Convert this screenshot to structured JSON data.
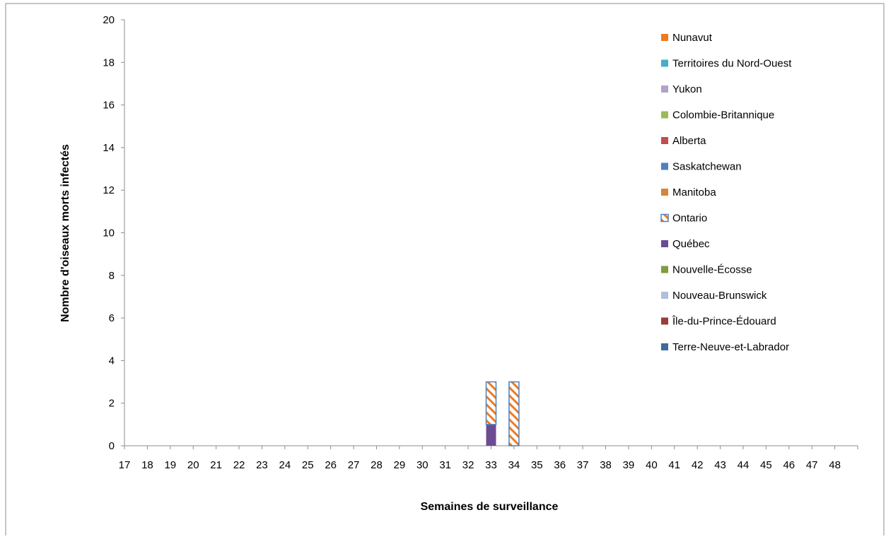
{
  "chart_data": {
    "type": "bar",
    "stacked": true,
    "xlabel": "Semaines de surveillance",
    "ylabel": "Nombre d'oiseaux morts infectés",
    "ylim": [
      0,
      20
    ],
    "yticks": [
      0,
      2,
      4,
      6,
      8,
      10,
      12,
      14,
      16,
      18,
      20
    ],
    "grid": false,
    "legend_position": "top-right",
    "categories": [
      "17",
      "18",
      "19",
      "20",
      "21",
      "22",
      "23",
      "24",
      "25",
      "26",
      "27",
      "28",
      "29",
      "30",
      "31",
      "32",
      "33",
      "34",
      "35",
      "36",
      "37",
      "38",
      "39",
      "40",
      "41",
      "42",
      "43",
      "44",
      "45",
      "46",
      "47",
      "48"
    ],
    "series": [
      {
        "name": "Terre-Neuve-et-Labrador",
        "color": "#3E6A9C",
        "values": [
          0,
          0,
          0,
          0,
          0,
          0,
          0,
          0,
          0,
          0,
          0,
          0,
          0,
          0,
          0,
          0,
          0,
          0,
          0,
          0,
          0,
          0,
          0,
          0,
          0,
          0,
          0,
          0,
          0,
          0,
          0,
          0
        ]
      },
      {
        "name": "Île-du-Prince-Édouard",
        "color": "#9E3B3B",
        "values": [
          0,
          0,
          0,
          0,
          0,
          0,
          0,
          0,
          0,
          0,
          0,
          0,
          0,
          0,
          0,
          0,
          0,
          0,
          0,
          0,
          0,
          0,
          0,
          0,
          0,
          0,
          0,
          0,
          0,
          0,
          0,
          0
        ]
      },
      {
        "name": "Nouveau-Brunswick",
        "color": "#AFC0DA",
        "values": [
          0,
          0,
          0,
          0,
          0,
          0,
          0,
          0,
          0,
          0,
          0,
          0,
          0,
          0,
          0,
          0,
          0,
          0,
          0,
          0,
          0,
          0,
          0,
          0,
          0,
          0,
          0,
          0,
          0,
          0,
          0,
          0
        ]
      },
      {
        "name": "Nouvelle-Écosse",
        "color": "#7F9E3E",
        "values": [
          0,
          0,
          0,
          0,
          0,
          0,
          0,
          0,
          0,
          0,
          0,
          0,
          0,
          0,
          0,
          0,
          0,
          0,
          0,
          0,
          0,
          0,
          0,
          0,
          0,
          0,
          0,
          0,
          0,
          0,
          0,
          0
        ]
      },
      {
        "name": "Québec",
        "color": "#6A4C93",
        "values": [
          0,
          0,
          0,
          0,
          0,
          0,
          0,
          0,
          0,
          0,
          0,
          0,
          0,
          0,
          0,
          0,
          1,
          0,
          0,
          0,
          0,
          0,
          0,
          0,
          0,
          0,
          0,
          0,
          0,
          0,
          0,
          0
        ]
      },
      {
        "name": "Ontario",
        "color": "#4F81BD",
        "pattern": "hatched-orange",
        "values": [
          0,
          0,
          0,
          0,
          0,
          0,
          0,
          0,
          0,
          0,
          0,
          0,
          0,
          0,
          0,
          0,
          2,
          3,
          0,
          0,
          0,
          0,
          0,
          0,
          0,
          0,
          0,
          0,
          0,
          0,
          0,
          0
        ]
      },
      {
        "name": "Manitoba",
        "color": "#D9843C",
        "values": [
          0,
          0,
          0,
          0,
          0,
          0,
          0,
          0,
          0,
          0,
          0,
          0,
          0,
          0,
          0,
          0,
          0,
          0,
          0,
          0,
          0,
          0,
          0,
          0,
          0,
          0,
          0,
          0,
          0,
          0,
          0,
          0
        ]
      },
      {
        "name": "Saskatchewan",
        "color": "#4F81BD",
        "values": [
          0,
          0,
          0,
          0,
          0,
          0,
          0,
          0,
          0,
          0,
          0,
          0,
          0,
          0,
          0,
          0,
          0,
          0,
          0,
          0,
          0,
          0,
          0,
          0,
          0,
          0,
          0,
          0,
          0,
          0,
          0,
          0
        ]
      },
      {
        "name": "Alberta",
        "color": "#C0504D",
        "values": [
          0,
          0,
          0,
          0,
          0,
          0,
          0,
          0,
          0,
          0,
          0,
          0,
          0,
          0,
          0,
          0,
          0,
          0,
          0,
          0,
          0,
          0,
          0,
          0,
          0,
          0,
          0,
          0,
          0,
          0,
          0,
          0
        ]
      },
      {
        "name": "Colombie-Britannique",
        "color": "#9BBB59",
        "values": [
          0,
          0,
          0,
          0,
          0,
          0,
          0,
          0,
          0,
          0,
          0,
          0,
          0,
          0,
          0,
          0,
          0,
          0,
          0,
          0,
          0,
          0,
          0,
          0,
          0,
          0,
          0,
          0,
          0,
          0,
          0,
          0
        ]
      },
      {
        "name": "Yukon",
        "color": "#B3A2C7",
        "values": [
          0,
          0,
          0,
          0,
          0,
          0,
          0,
          0,
          0,
          0,
          0,
          0,
          0,
          0,
          0,
          0,
          0,
          0,
          0,
          0,
          0,
          0,
          0,
          0,
          0,
          0,
          0,
          0,
          0,
          0,
          0,
          0
        ]
      },
      {
        "name": "Territoires du Nord-Ouest",
        "color": "#4BACC6",
        "values": [
          0,
          0,
          0,
          0,
          0,
          0,
          0,
          0,
          0,
          0,
          0,
          0,
          0,
          0,
          0,
          0,
          0,
          0,
          0,
          0,
          0,
          0,
          0,
          0,
          0,
          0,
          0,
          0,
          0,
          0,
          0,
          0
        ]
      },
      {
        "name": "Nunavut",
        "color": "#F07A1B",
        "values": [
          0,
          0,
          0,
          0,
          0,
          0,
          0,
          0,
          0,
          0,
          0,
          0,
          0,
          0,
          0,
          0,
          0,
          0,
          0,
          0,
          0,
          0,
          0,
          0,
          0,
          0,
          0,
          0,
          0,
          0,
          0,
          0
        ]
      }
    ],
    "legend_order": [
      "Nunavut",
      "Territoires du Nord-Ouest",
      "Yukon",
      "Colombie-Britannique",
      "Alberta",
      "Saskatchewan",
      "Manitoba",
      "Ontario",
      "Québec",
      "Nouvelle-Écosse",
      "Nouveau-Brunswick",
      "Île-du-Prince-Édouard",
      "Terre-Neuve-et-Labrador"
    ]
  }
}
